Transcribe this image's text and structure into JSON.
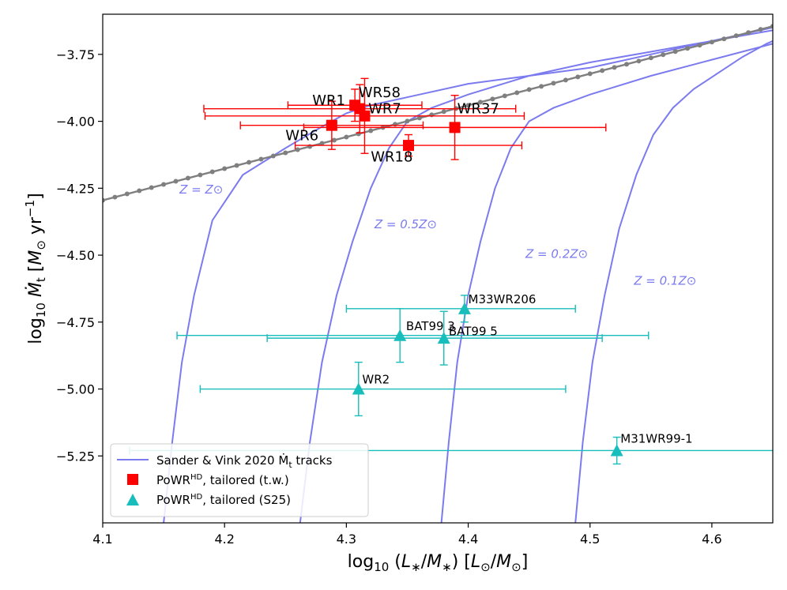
{
  "chart_data": {
    "type": "scatter",
    "xlabel_main": "log",
    "xlabel_sub": "10",
    "xlabel_rest": "(L",
    "xlabel_text": "log10 (L*/M*)  [L⊙/M⊙]",
    "ylabel_text": "log10 Ṁt  [M⊙ yr^-1]",
    "xlim": [
      4.1,
      4.65
    ],
    "ylim": [
      -5.5,
      -3.6
    ],
    "xticks": [
      4.1,
      4.2,
      4.3,
      4.4,
      4.5,
      4.6
    ],
    "xtick_labels": [
      "4.1",
      "4.2",
      "4.3",
      "4.4",
      "4.5",
      "4.6"
    ],
    "yticks": [
      -3.75,
      -4.0,
      -4.25,
      -4.5,
      -4.75,
      -5.0,
      -5.25
    ],
    "ytick_labels": [
      "−3.75",
      "−4.00",
      "−4.25",
      "−4.50",
      "−4.75",
      "−5.00",
      "−5.25"
    ],
    "gray_line": {
      "name": "gray reference relation",
      "x": [
        4.1,
        4.65
      ],
      "y": [
        -4.295,
        -3.645
      ],
      "marker_step": 0.01
    },
    "tracks": [
      {
        "label": "Z = Z⊙",
        "x": [
          4.15,
          4.157,
          4.165,
          4.175,
          4.19,
          4.215,
          4.25,
          4.28,
          4.3,
          4.32,
          4.34,
          4.36,
          4.4,
          4.45,
          4.5,
          4.55,
          4.6,
          4.65
        ],
        "y": [
          -5.5,
          -5.2,
          -4.9,
          -4.65,
          -4.37,
          -4.2,
          -4.1,
          -4.02,
          -3.97,
          -3.94,
          -3.92,
          -3.9,
          -3.86,
          -3.83,
          -3.8,
          -3.75,
          -3.7,
          -3.65
        ]
      },
      {
        "label": "Z = 0.5Z⊙",
        "x": [
          4.262,
          4.27,
          4.28,
          4.292,
          4.305,
          4.32,
          4.335,
          4.35,
          4.37,
          4.4,
          4.45,
          4.5,
          4.55,
          4.6,
          4.65
        ],
        "y": [
          -5.5,
          -5.2,
          -4.9,
          -4.65,
          -4.45,
          -4.25,
          -4.1,
          -4.0,
          -3.95,
          -3.9,
          -3.83,
          -3.78,
          -3.74,
          -3.7,
          -3.66
        ]
      },
      {
        "label": "Z = 0.2Z⊙",
        "x": [
          4.378,
          4.384,
          4.391,
          4.4,
          4.41,
          4.422,
          4.435,
          4.45,
          4.47,
          4.5,
          4.55,
          4.6,
          4.65
        ],
        "y": [
          -5.5,
          -5.2,
          -4.9,
          -4.65,
          -4.45,
          -4.25,
          -4.1,
          -4.0,
          -3.95,
          -3.9,
          -3.83,
          -3.77,
          -3.71
        ]
      },
      {
        "label": "Z = 0.1Z⊙",
        "x": [
          4.488,
          4.494,
          4.502,
          4.512,
          4.524,
          4.538,
          4.552,
          4.568,
          4.585,
          4.605,
          4.625,
          4.645,
          4.65
        ],
        "y": [
          -5.5,
          -5.2,
          -4.9,
          -4.65,
          -4.4,
          -4.2,
          -4.05,
          -3.95,
          -3.88,
          -3.82,
          -3.76,
          -3.71,
          -3.7
        ]
      }
    ],
    "track_labels": [
      {
        "text": "Z = Z⊙",
        "x": 4.163,
        "y": -4.27
      },
      {
        "text": "Z = 0.5Z⊙",
        "x": 4.323,
        "y": -4.4
      },
      {
        "text": "Z = 0.2Z⊙",
        "x": 4.447,
        "y": -4.51
      },
      {
        "text": "Z = 0.1Z⊙",
        "x": 4.536,
        "y": -4.61
      }
    ],
    "series": [
      {
        "name": "PoWR^HD, tailored (t.w.)",
        "color": "#ff0000",
        "marker": "square",
        "points": [
          {
            "label": "WR1",
            "x": 4.307,
            "y": -3.94,
            "xerr": [
              0.055,
              0.055
            ],
            "yerr": [
              0.06,
              0.06
            ],
            "lx": 4.272,
            "ly": -3.94
          },
          {
            "label": "WR58",
            "x": 4.311,
            "y": -3.953,
            "xerr": [
              0.128,
              0.128
            ],
            "yerr": [
              0.09,
              0.09
            ],
            "lx": 4.31,
            "ly": -3.91
          },
          {
            "label": "WR7",
            "x": 4.315,
            "y": -3.98,
            "xerr": [
              0.131,
              0.131
            ],
            "yerr": [
              0.14,
              0.14
            ],
            "lx": 4.318,
            "ly": -3.97
          },
          {
            "label": "WR37",
            "x": 4.389,
            "y": -4.023,
            "xerr": [
              0.124,
              0.124
            ],
            "yerr": [
              0.12,
              0.12
            ],
            "lx": 4.391,
            "ly": -3.97
          },
          {
            "label": "WR6",
            "x": 4.288,
            "y": -4.015,
            "xerr": [
              0.075,
              0.075
            ],
            "yerr": [
              0.09,
              0.09
            ],
            "lx": 4.25,
            "ly": -4.07
          },
          {
            "label": "WR18",
            "x": 4.351,
            "y": -4.09,
            "xerr": [
              0.093,
              0.093
            ],
            "yerr": [
              0.04,
              0.04
            ],
            "lx": 4.32,
            "ly": -4.15
          }
        ]
      },
      {
        "name": "PoWR^HD, tailored (S25)",
        "color": "#17bebb",
        "marker": "triangle",
        "points": [
          {
            "label": "M33WR206",
            "x": 4.397,
            "y": -4.7,
            "xerr": [
              0.097,
              0.091
            ],
            "yerr": [
              0.05,
              0.05
            ],
            "lx": 4.4,
            "ly": -4.68
          },
          {
            "label": "BAT99 3",
            "x": 4.344,
            "y": -4.8,
            "xerr": [
              0.183,
              0.204
            ],
            "yerr": [
              0.1,
              0.1
            ],
            "lx": 4.349,
            "ly": -4.78
          },
          {
            "label": "BAT99 5",
            "x": 4.38,
            "y": -4.81,
            "xerr": [
              0.145,
              0.13
            ],
            "yerr": [
              0.1,
              0.1
            ],
            "lx": 4.384,
            "ly": -4.8
          },
          {
            "label": "WR2",
            "x": 4.31,
            "y": -5.0,
            "xerr": [
              0.13,
              0.17
            ],
            "yerr": [
              0.1,
              0.1
            ],
            "lx": 4.313,
            "ly": -4.98
          },
          {
            "label": "M31WR99-1",
            "x": 4.522,
            "y": -5.23,
            "xerr": [
              0.4,
              0.2
            ],
            "yerr": [
              0.05,
              0.05
            ],
            "lx": 4.525,
            "ly": -5.2
          }
        ]
      }
    ],
    "legend": {
      "placement": "lower-left",
      "entries": [
        {
          "main": "Sander & Vink 2020 Ṁ",
          "sub": "t",
          "rest": " tracks"
        },
        {
          "main": "PoWR",
          "sup": "HD",
          "rest": ", tailored (t.w.)"
        },
        {
          "main": "PoWR",
          "sup": "HD",
          "rest": ", tailored (S25)"
        }
      ]
    },
    "colors": {
      "track": "#7b7bef",
      "gray": "#7f7f7f",
      "red": "#ff0000",
      "cyan": "#17bebb",
      "axis": "#000000"
    }
  }
}
